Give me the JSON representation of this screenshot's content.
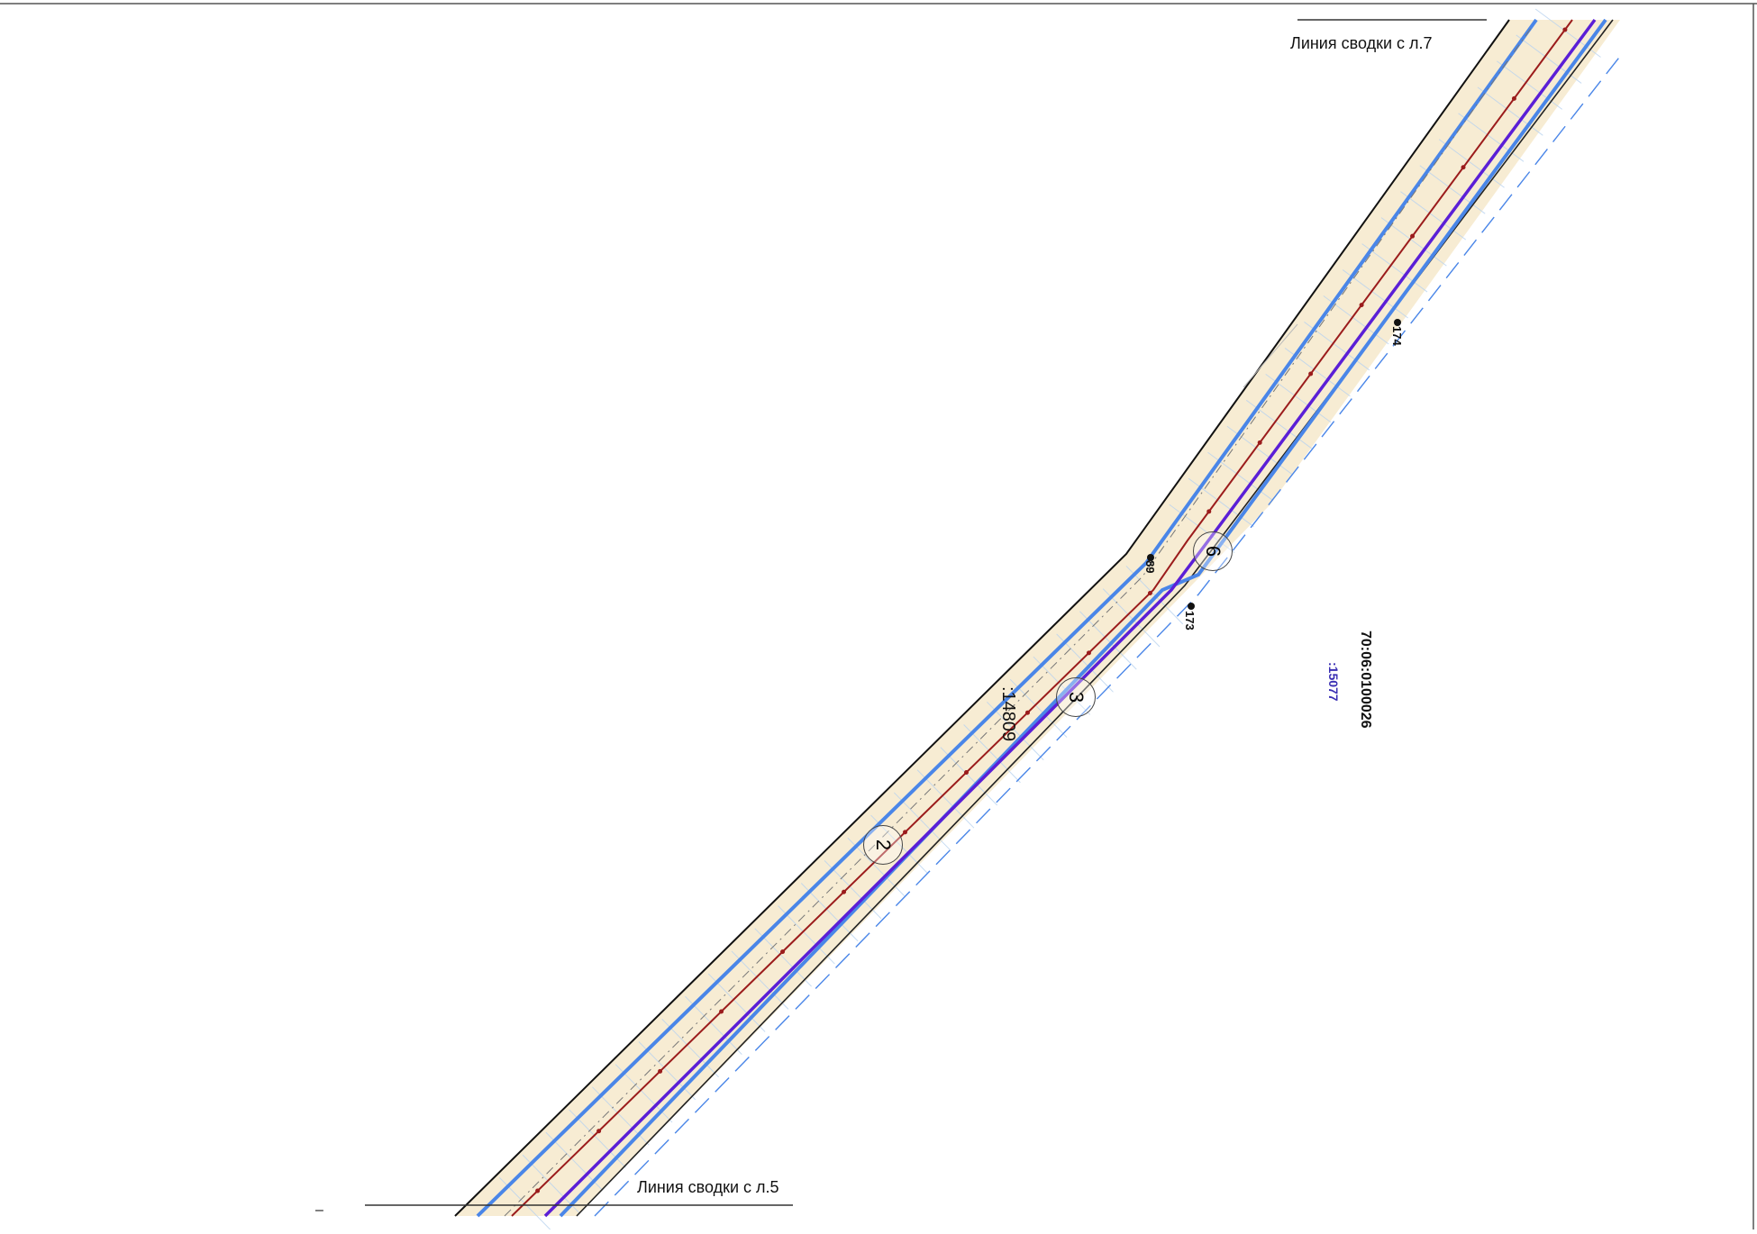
{
  "map": {
    "merge_line_top": "Линия сводки с л.7",
    "merge_line_bottom": "Линия сводки с л.5",
    "cadastral_block": "70:06:0100026",
    "parcel_15077": ":15077",
    "parcel_14809": ":14809",
    "points": {
      "p89": "89",
      "p173": "173",
      "p174": "174"
    },
    "zones": {
      "z2": "2",
      "z3": "3",
      "z6": "6"
    },
    "stray_mark": "–"
  },
  "colors": {
    "corridor_fill": "#f7ecd3",
    "boundary_black": "#111111",
    "blue_line": "#4a86e8",
    "purple_line": "#5b1fd6",
    "axis_red": "#9b1c1c",
    "dashed_blue": "#4a86e8",
    "grid_hatch": "#b9d3ef"
  }
}
